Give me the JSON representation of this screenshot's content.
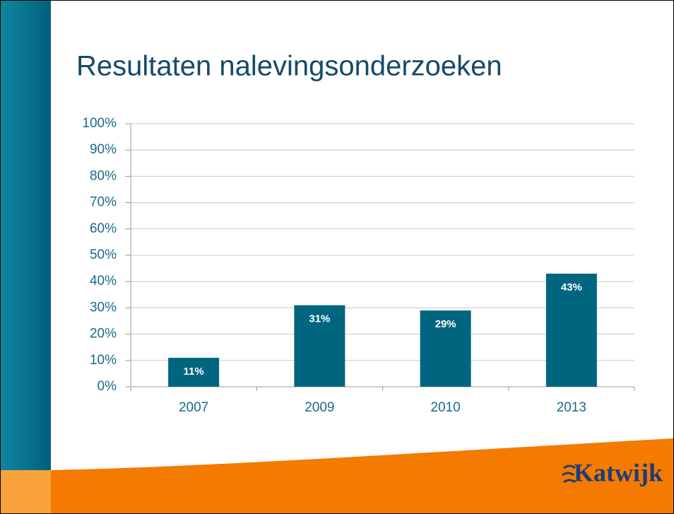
{
  "chart_data": {
    "type": "bar",
    "title": "Resultaten nalevingsonderzoeken",
    "categories": [
      "2007",
      "2009",
      "2010",
      "2013"
    ],
    "values": [
      11,
      31,
      29,
      43
    ],
    "value_labels": [
      "11%",
      "31%",
      "29%",
      "43%"
    ],
    "color": "#006680",
    "ylim": [
      0,
      100
    ],
    "yticks": [
      {
        "value": 0,
        "label": "0%"
      },
      {
        "value": 10,
        "label": "10%"
      },
      {
        "value": 20,
        "label": "20%"
      },
      {
        "value": 30,
        "label": "30%"
      },
      {
        "value": 40,
        "label": "40%"
      },
      {
        "value": 50,
        "label": "50%"
      },
      {
        "value": 60,
        "label": "60%"
      },
      {
        "value": 70,
        "label": "70%"
      },
      {
        "value": 80,
        "label": "80%"
      },
      {
        "value": 90,
        "label": "90%"
      },
      {
        "value": 100,
        "label": "100%"
      }
    ],
    "grid": true
  },
  "logo": "Katwijk"
}
